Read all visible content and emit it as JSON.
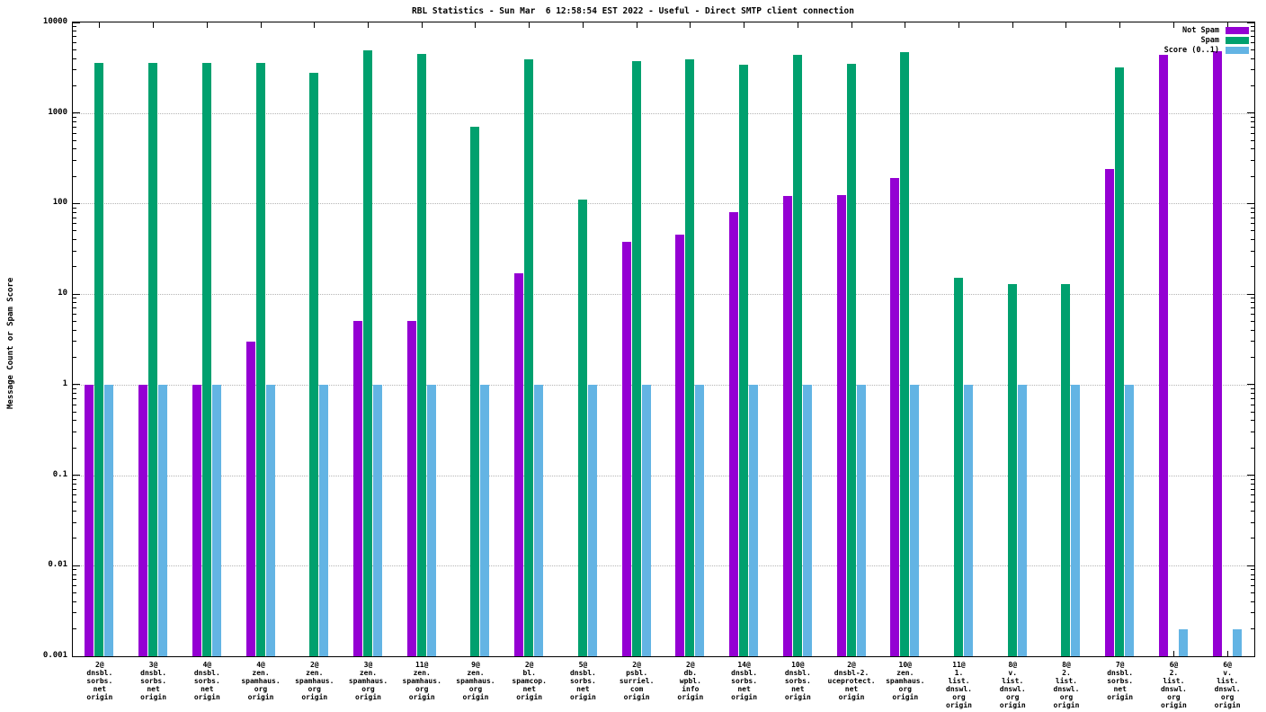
{
  "title": "RBL Statistics - Sun Mar  6 12:58:54 EST 2022 - Useful - Direct SMTP client connection",
  "chart_data": {
    "type": "bar",
    "title": "RBL Statistics - Sun Mar  6 12:58:54 EST 2022 - Useful - Direct SMTP client connection",
    "ylabel": "Message Count or Spam Score",
    "xlabel": "",
    "y_scale": "log10",
    "ylim": [
      0.001,
      10000
    ],
    "yticks": [
      0.001,
      0.01,
      0.1,
      1,
      10,
      100,
      1000,
      10000
    ],
    "ytick_labels": [
      "0.001",
      "0.01",
      "0.1",
      "1",
      "10",
      "100",
      "1000",
      "10000"
    ],
    "grid": "horizontal-dotted",
    "legend_position": "top-right-inside",
    "axis_color": "#000000",
    "background_color": "#ffffff",
    "categories": [
      [
        "2@",
        "dnsbl.",
        "sorbs.",
        "net",
        "origin"
      ],
      [
        "3@",
        "dnsbl.",
        "sorbs.",
        "net",
        "origin"
      ],
      [
        "4@",
        "dnsbl.",
        "sorbs.",
        "net",
        "origin"
      ],
      [
        "4@",
        "zen.",
        "spamhaus.",
        "org",
        "origin"
      ],
      [
        "2@",
        "zen.",
        "spamhaus.",
        "org",
        "origin"
      ],
      [
        "3@",
        "zen.",
        "spamhaus.",
        "org",
        "origin"
      ],
      [
        "11@",
        "zen.",
        "spamhaus.",
        "org",
        "origin"
      ],
      [
        "9@",
        "zen.",
        "spamhaus.",
        "org",
        "origin"
      ],
      [
        "2@",
        "bl.",
        "spamcop.",
        "net",
        "origin"
      ],
      [
        "5@",
        "dnsbl.",
        "sorbs.",
        "net",
        "origin"
      ],
      [
        "2@",
        "psbl.",
        "surriel.",
        "com",
        "origin"
      ],
      [
        "2@",
        "db.",
        "wpbl.",
        "info",
        "origin"
      ],
      [
        "14@",
        "dnsbl.",
        "sorbs.",
        "net",
        "origin"
      ],
      [
        "10@",
        "dnsbl.",
        "sorbs.",
        "net",
        "origin"
      ],
      [
        "2@",
        "dnsbl-2.",
        "uceprotect.",
        "net",
        "origin"
      ],
      [
        "10@",
        "zen.",
        "spamhaus.",
        "org",
        "origin"
      ],
      [
        "11@",
        "1.",
        "list.",
        "dnswl.",
        "org",
        "origin"
      ],
      [
        "8@",
        "v.",
        "list.",
        "dnswl.",
        "org",
        "origin"
      ],
      [
        "8@",
        "2.",
        "list.",
        "dnswl.",
        "org",
        "origin"
      ],
      [
        "7@",
        "dnsbl.",
        "sorbs.",
        "net",
        "origin"
      ],
      [
        "6@",
        "2.",
        "list.",
        "dnswl.",
        "org",
        "origin"
      ],
      [
        "6@",
        "v.",
        "list.",
        "dnswl.",
        "org",
        "origin"
      ]
    ],
    "series": [
      {
        "name": "Not Spam",
        "color": "#9400d3",
        "values": [
          1,
          1,
          1,
          3,
          null,
          5,
          5,
          null,
          17,
          null,
          38,
          45,
          80,
          120,
          125,
          190,
          null,
          null,
          null,
          240,
          4400,
          4800
        ]
      },
      {
        "name": "Spam",
        "color": "#00a06e",
        "values": [
          3600,
          3600,
          3600,
          3600,
          2800,
          4900,
          4500,
          700,
          3900,
          110,
          3700,
          3900,
          3400,
          4400,
          3500,
          4700,
          15,
          13,
          13,
          3200,
          null,
          null
        ]
      },
      {
        "name": "Score (0..1)",
        "color": "#63b4e4",
        "values": [
          1,
          1,
          1,
          1,
          1,
          1,
          1,
          1,
          1,
          1,
          1,
          1,
          1,
          1,
          1,
          1,
          1,
          1,
          1,
          1,
          0.002,
          0.002
        ]
      }
    ]
  }
}
